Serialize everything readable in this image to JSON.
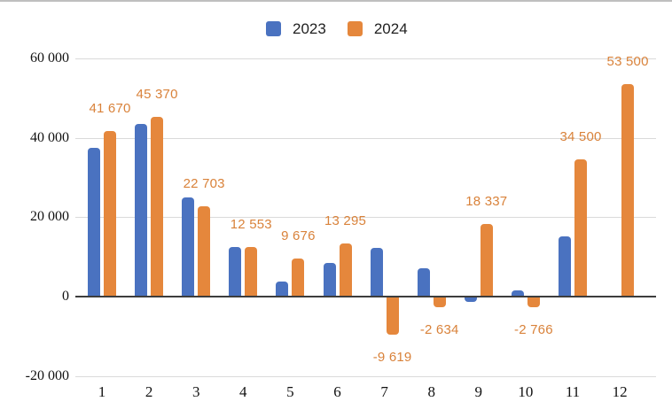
{
  "chart_data": {
    "type": "bar",
    "title": "",
    "categories": [
      "1",
      "2",
      "3",
      "4",
      "5",
      "6",
      "7",
      "8",
      "9",
      "10",
      "11",
      "12"
    ],
    "series": [
      {
        "name": "2023",
        "color": "#4a72c0",
        "values": [
          37500,
          43400,
          25000,
          12600,
          3800,
          8400,
          12300,
          7100,
          -1300,
          1500,
          15200,
          null
        ]
      },
      {
        "name": "2024",
        "color": "#e5873c",
        "values": [
          41670,
          45370,
          22703,
          12553,
          9676,
          13295,
          -9619,
          -2634,
          18337,
          -2766,
          34500,
          53500
        ],
        "data_labels": [
          "41 670",
          "45 370",
          "22 703",
          "12 553",
          "9 676",
          "13 295",
          "-9 619",
          "-2 634",
          "18 337",
          "-2 766",
          "34 500",
          "53 500"
        ],
        "label_color": "#d9823a"
      }
    ],
    "yticks": [
      {
        "label": "60 000",
        "value": 60000
      },
      {
        "label": "40 000",
        "value": 40000
      },
      {
        "label": "20 000",
        "value": 20000
      },
      {
        "label": "0",
        "value": 0
      },
      {
        "label": "-20 000",
        "value": -20000
      }
    ],
    "ylim": [
      -20000,
      60000
    ],
    "grid": true,
    "gridline_color": "#dadada",
    "zero_line_color": "#3d3d3d",
    "tick_color": "#111111",
    "legend_position": "top"
  }
}
